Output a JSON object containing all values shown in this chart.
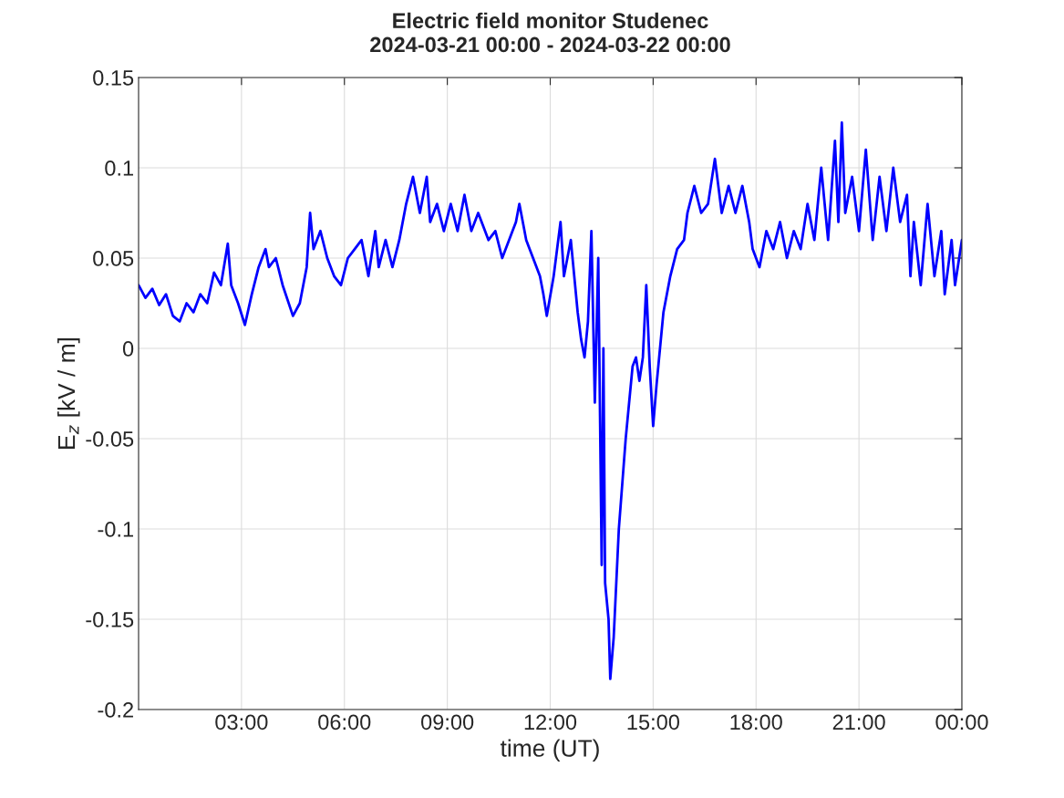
{
  "chart_data": {
    "type": "line",
    "title": "Electric field monitor Studenec",
    "subtitle": "2024-03-21 00:00 - 2024-03-22 00:00",
    "xlabel": "time (UT)",
    "ylabel": "E$_{z}$ [kV / m]",
    "xlim": [
      0,
      24
    ],
    "xticks": [
      {
        "value": 3,
        "label": "03:00"
      },
      {
        "value": 6,
        "label": "06:00"
      },
      {
        "value": 9,
        "label": "09:00"
      },
      {
        "value": 12,
        "label": "12:00"
      },
      {
        "value": 15,
        "label": "15:00"
      },
      {
        "value": 18,
        "label": "18:00"
      },
      {
        "value": 21,
        "label": "21:00"
      },
      {
        "value": 24,
        "label": "00:00"
      }
    ],
    "ylim": [
      -0.2,
      0.15
    ],
    "yticks": [
      -0.2,
      -0.15,
      -0.1,
      -0.05,
      0,
      0.05,
      0.1,
      0.15
    ],
    "grid": true,
    "legend": false,
    "marker": "none",
    "line_style": "solid",
    "series": [
      {
        "color": "#0000ff",
        "x": [
          0.0,
          0.2,
          0.4,
          0.6,
          0.8,
          1.0,
          1.2,
          1.4,
          1.6,
          1.8,
          2.0,
          2.2,
          2.4,
          2.6,
          2.7,
          2.9,
          3.1,
          3.3,
          3.5,
          3.7,
          3.8,
          4.0,
          4.2,
          4.5,
          4.7,
          4.9,
          5.0,
          5.1,
          5.3,
          5.5,
          5.7,
          5.9,
          6.1,
          6.3,
          6.5,
          6.7,
          6.9,
          7.0,
          7.2,
          7.4,
          7.6,
          7.8,
          8.0,
          8.2,
          8.4,
          8.5,
          8.7,
          8.9,
          9.1,
          9.3,
          9.5,
          9.7,
          9.9,
          10.2,
          10.4,
          10.6,
          10.8,
          11.0,
          11.1,
          11.3,
          11.5,
          11.7,
          11.8,
          11.9,
          12.1,
          12.3,
          12.4,
          12.6,
          12.8,
          12.9,
          13.0,
          13.1,
          13.2,
          13.3,
          13.4,
          13.5,
          13.55,
          13.6,
          13.7,
          13.75,
          13.85,
          14.0,
          14.2,
          14.3,
          14.4,
          14.5,
          14.6,
          14.7,
          14.8,
          14.9,
          15.0,
          15.1,
          15.3,
          15.5,
          15.7,
          15.9,
          16.0,
          16.2,
          16.4,
          16.6,
          16.8,
          17.0,
          17.2,
          17.4,
          17.6,
          17.8,
          17.9,
          18.1,
          18.3,
          18.5,
          18.7,
          18.9,
          19.1,
          19.3,
          19.5,
          19.7,
          19.9,
          20.1,
          20.3,
          20.4,
          20.5,
          20.6,
          20.8,
          21.0,
          21.2,
          21.4,
          21.6,
          21.8,
          22.0,
          22.2,
          22.4,
          22.5,
          22.6,
          22.8,
          23.0,
          23.2,
          23.4,
          23.5,
          23.7,
          23.8,
          24.0
        ],
        "values": [
          0.035,
          0.028,
          0.033,
          0.024,
          0.03,
          0.018,
          0.015,
          0.025,
          0.02,
          0.03,
          0.025,
          0.042,
          0.035,
          0.058,
          0.035,
          0.025,
          0.013,
          0.03,
          0.045,
          0.055,
          0.045,
          0.05,
          0.035,
          0.018,
          0.025,
          0.045,
          0.075,
          0.055,
          0.065,
          0.05,
          0.04,
          0.035,
          0.05,
          0.055,
          0.06,
          0.04,
          0.065,
          0.045,
          0.06,
          0.045,
          0.06,
          0.08,
          0.095,
          0.075,
          0.095,
          0.07,
          0.08,
          0.065,
          0.08,
          0.065,
          0.085,
          0.065,
          0.075,
          0.06,
          0.065,
          0.05,
          0.06,
          0.07,
          0.08,
          0.06,
          0.05,
          0.04,
          0.03,
          0.018,
          0.04,
          0.07,
          0.04,
          0.06,
          0.02,
          0.005,
          -0.005,
          0.015,
          0.065,
          -0.03,
          0.05,
          -0.12,
          0.0,
          -0.13,
          -0.15,
          -0.183,
          -0.16,
          -0.1,
          -0.05,
          -0.03,
          -0.01,
          -0.005,
          -0.018,
          -0.005,
          0.035,
          -0.01,
          -0.043,
          -0.02,
          0.02,
          0.04,
          0.055,
          0.06,
          0.075,
          0.09,
          0.075,
          0.08,
          0.105,
          0.075,
          0.09,
          0.075,
          0.09,
          0.07,
          0.055,
          0.045,
          0.065,
          0.055,
          0.07,
          0.05,
          0.065,
          0.055,
          0.08,
          0.06,
          0.1,
          0.06,
          0.115,
          0.07,
          0.125,
          0.075,
          0.095,
          0.065,
          0.11,
          0.06,
          0.095,
          0.065,
          0.1,
          0.07,
          0.085,
          0.04,
          0.07,
          0.035,
          0.08,
          0.04,
          0.065,
          0.03,
          0.06,
          0.035,
          0.06
        ]
      }
    ]
  }
}
